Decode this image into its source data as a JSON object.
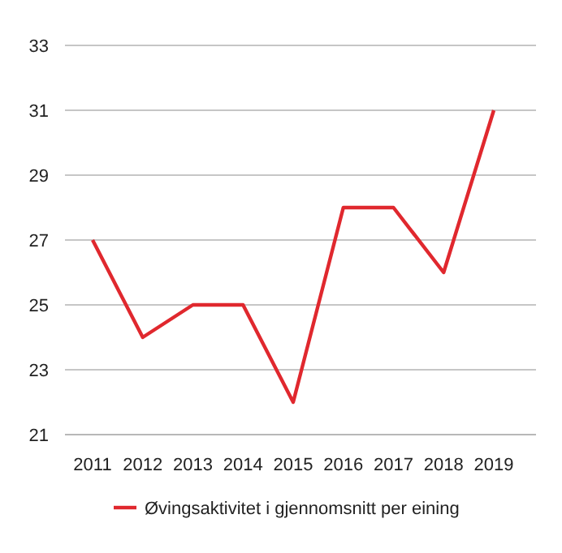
{
  "chart_data": {
    "type": "line",
    "categories": [
      "2011",
      "2012",
      "2013",
      "2014",
      "2015",
      "2016",
      "2017",
      "2018",
      "2019"
    ],
    "series": [
      {
        "name": "Øvingsaktivitet i gjennomsnitt per eining",
        "color": "#e0282e",
        "values": [
          27,
          24,
          25,
          25,
          22,
          28,
          28,
          26,
          31
        ]
      }
    ],
    "ylim": [
      21,
      33
    ],
    "yticks": [
      21,
      23,
      25,
      27,
      29,
      31,
      33
    ],
    "grid": "y",
    "legend": "bottom",
    "marker": "none",
    "line_style": "solid"
  }
}
